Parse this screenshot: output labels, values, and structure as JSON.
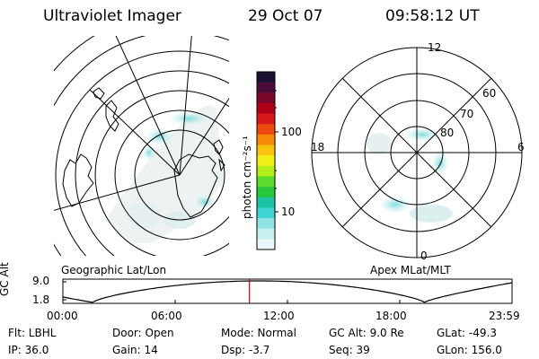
{
  "header": {
    "instrument": "Ultraviolet Imager",
    "date": "29 Oct 07",
    "time": "09:58:12 UT"
  },
  "colorbar": {
    "label": "photon cm⁻²s⁻¹",
    "ticks": [
      "100",
      "10"
    ],
    "colors": [
      "#1a1030",
      "#4a0d3a",
      "#7a0828",
      "#b00018",
      "#d81818",
      "#ee4a10",
      "#f88a08",
      "#f8c410",
      "#f2ee18",
      "#b4ee18",
      "#5adc2c",
      "#28c83c",
      "#1cc4a4",
      "#40d4d4",
      "#90e4e4",
      "#c8f0f0",
      "#e8f8f8"
    ]
  },
  "geo_map": {
    "label": "Geographic Lat/Lon"
  },
  "polar_map": {
    "label": "Apex MLat/MLT",
    "mlt_labels": {
      "top": "12",
      "left": "18",
      "right": "6",
      "bottom": "0"
    },
    "lat_labels": [
      "60",
      "70",
      "80"
    ]
  },
  "altitude_panel": {
    "ylabel": "GC Alt",
    "yticks": [
      "9.0",
      "1.8"
    ],
    "xticks": [
      "00:00",
      "06:00",
      "12:00",
      "18:00",
      "23:59"
    ],
    "current_time_marker_hours": 9.97,
    "marker_color": "#d00000"
  },
  "info": {
    "filter": "Flt: LBHL",
    "door": "Door: Open",
    "mode": "Mode: Normal",
    "gc_alt": "GC Alt: 9.0 Re",
    "glat": "GLat: -49.3",
    "ip": "IP: 36.0",
    "gain": "Gain: 14",
    "dsp": "Dsp:    -3.7",
    "seq": "Seq: 39",
    "glon": "GLon: 156.0"
  }
}
